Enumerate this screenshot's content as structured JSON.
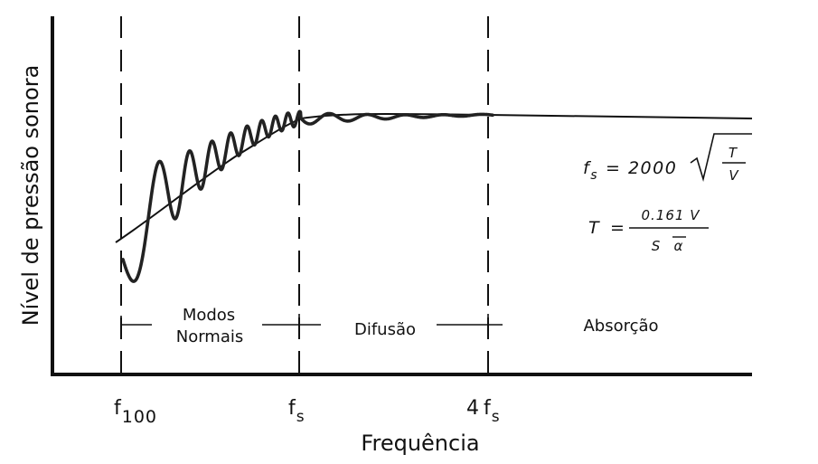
{
  "axes": {
    "x_title": "Frequência",
    "y_title": "Nível de pressão sonora"
  },
  "ticks": {
    "f100": {
      "base": "f",
      "sub": "100"
    },
    "fs": {
      "base": "f",
      "sub": "s"
    },
    "four_fs": {
      "prefix": "4",
      "base": "f",
      "sub": "s"
    }
  },
  "regions": {
    "modal_line1": "Modos",
    "modal_line2": "Normais",
    "diffusion": "Difusão",
    "absorption": "Absorção"
  },
  "formulas": {
    "fs_lhs_base": "f",
    "fs_lhs_sub": "s",
    "fs_eq": "= 2000",
    "fs_num": "T",
    "fs_den": "V",
    "t_lhs": "T",
    "t_eq": "=",
    "t_num": "0.161 V",
    "t_den_s": "S",
    "t_den_alpha": "α"
  },
  "colors": {
    "ink": "#111111"
  }
}
